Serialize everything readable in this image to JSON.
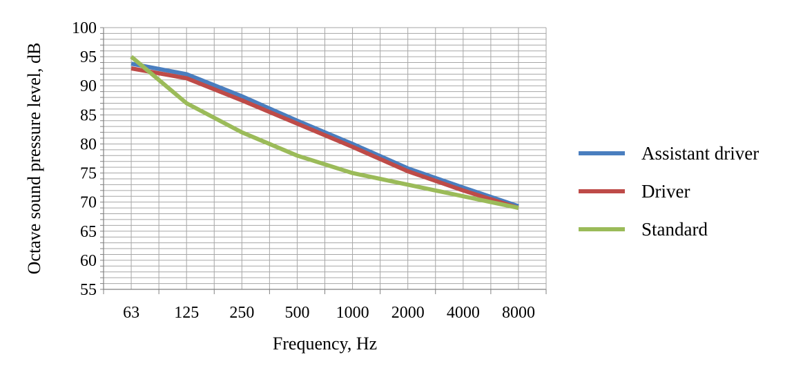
{
  "chart_data": {
    "type": "line",
    "title": "",
    "xlabel": "Frequency, Hz",
    "ylabel": "Octave sound pressure level, dB",
    "categories": [
      "63",
      "125",
      "250",
      "500",
      "1000",
      "2000",
      "4000",
      "8000"
    ],
    "ylim": [
      55,
      100
    ],
    "yticks": [
      55,
      60,
      65,
      70,
      75,
      80,
      85,
      90,
      95,
      100
    ],
    "y_minor_step": 1,
    "grid": "on",
    "legend_position": "right",
    "series": [
      {
        "name": "Assistant driver",
        "color": "#4a7ebf",
        "values": [
          93.8,
          92,
          88.2,
          84,
          80,
          75.8,
          72.5,
          69.3
        ]
      },
      {
        "name": "Driver",
        "color": "#be4b48",
        "values": [
          93,
          91.3,
          87.5,
          83.5,
          79.5,
          75.3,
          72,
          69
        ]
      },
      {
        "name": "Standard",
        "color": "#9bbb59",
        "values": [
          95,
          87,
          82,
          78,
          75,
          73,
          71,
          69
        ]
      }
    ]
  }
}
